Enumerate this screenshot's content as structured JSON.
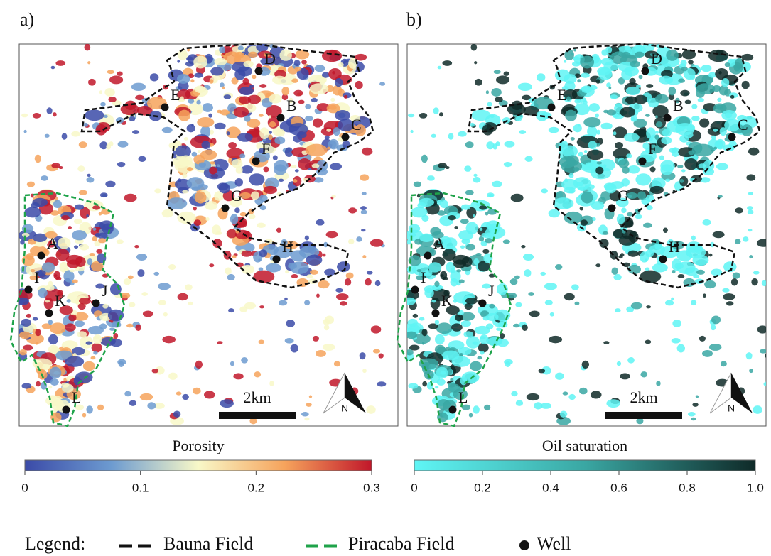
{
  "panels": [
    {
      "label": "a)",
      "colorbar": {
        "title": "Porosity",
        "lim": [
          0,
          0.3
        ],
        "ticks": [
          0,
          0.1,
          0.2,
          0.3
        ],
        "colors": [
          "#3b4ba8",
          "#6d9bd0",
          "#f8f8c8",
          "#f6a35c",
          "#c1172a"
        ]
      }
    },
    {
      "label": "b)",
      "colorbar": {
        "title": "Oil saturation",
        "lim": [
          0,
          1
        ],
        "ticks": [
          0,
          0.2,
          0.4,
          0.6,
          0.8,
          {
            "value": 1,
            "label": "1.0"
          }
        ],
        "colors": [
          "#5ff5f5",
          "#3aa7a3",
          "#0f2a28"
        ]
      }
    }
  ],
  "wells": [
    "A",
    "B",
    "C",
    "D",
    "E",
    "F",
    "G",
    "H",
    "I",
    "J",
    "K",
    "L"
  ],
  "scale_bar": "2km",
  "north": "N",
  "legend": {
    "title": "Legend:",
    "items": [
      "Bauna Field",
      "Piracaba Field",
      "Well"
    ]
  }
}
